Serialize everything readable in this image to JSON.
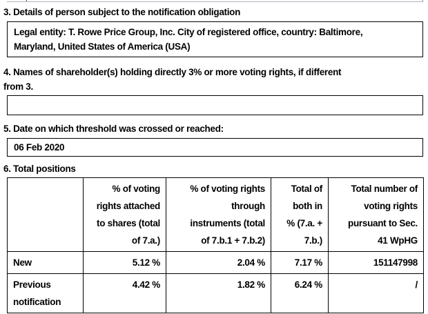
{
  "section3": {
    "heading": "3. Details of person subject to the notification obligation",
    "value_lines": [
      "Legal entity: T. Rowe Price Group, Inc. City of registered office, country: Baltimore,",
      "Maryland, United States of America (USA)"
    ]
  },
  "section4": {
    "heading_lines": [
      "4. Names of shareholder(s) holding directly 3% or more voting rights, if different",
      "from 3."
    ],
    "value": ""
  },
  "section5": {
    "heading": "5. Date on which threshold was crossed or reached:",
    "value": "06 Feb 2020"
  },
  "section6": {
    "heading": "6. Total positions",
    "table": {
      "header": {
        "col0": "",
        "col1_lines": [
          "% of voting",
          "rights attached",
          "to shares (total",
          "of 7.a.)"
        ],
        "col2_lines": [
          "% of voting rights",
          "through",
          "instruments (total",
          "of 7.b.1 + 7.b.2)"
        ],
        "col3_lines": [
          "Total of",
          "both in",
          "% (7.a. +",
          "7.b.)"
        ],
        "col4_lines": [
          "Total number of",
          "voting rights",
          "pursuant to Sec.",
          "41 WpHG"
        ]
      },
      "rows": [
        {
          "label": "New",
          "voting_rights_shares": "5.12 %",
          "voting_rights_instruments": "2.04 %",
          "total_both": "7.17 %",
          "total_number": "151147998"
        },
        {
          "label": "Previous notification",
          "voting_rights_shares": "4.42 %",
          "voting_rights_instruments": "1.82 %",
          "total_both": "6.24 %",
          "total_number": "/"
        }
      ]
    }
  }
}
